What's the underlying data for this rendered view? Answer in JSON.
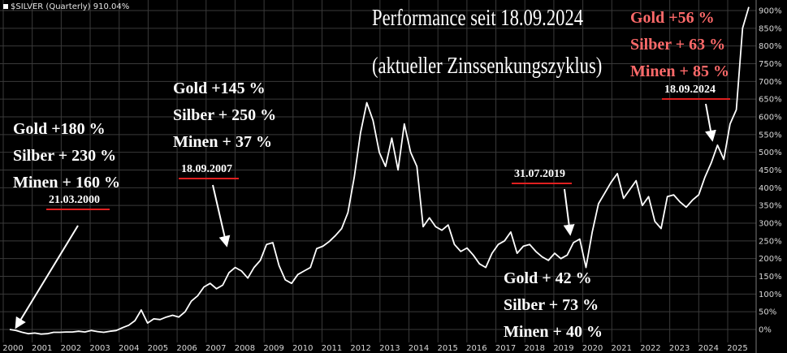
{
  "header": {
    "symbol_label": "$SILVER (Quarterly) 910.04%"
  },
  "title_lines": [
    "Performance seit 18.09.2024",
    "(aktueller Zinssenkungszyklus)"
  ],
  "annotations": [
    {
      "id": "2000",
      "lines": [
        "Gold +180 %",
        "Silber + 230 %",
        "Minen + 160 %"
      ],
      "date": "21.03.2000"
    },
    {
      "id": "2007",
      "lines": [
        "Gold +145 %",
        "Silber + 250 %",
        "Minen + 37 %"
      ],
      "date": "18.09.2007"
    },
    {
      "id": "2019",
      "lines": [
        "Gold + 42 %",
        "Silber + 73 %",
        "Minen + 40 %"
      ],
      "date": "31.07.2019"
    },
    {
      "id": "2024",
      "lines": [
        "Gold +56 %",
        "Silber + 63 %",
        "Minen + 85 %"
      ],
      "date": "18.09.2024"
    }
  ],
  "colors": {
    "background": "#000000",
    "grid": "#3a3a3a",
    "line": "#ffffff",
    "date_underline": "#e02020",
    "highlight_text": "#ff6a6a"
  },
  "chart_data": {
    "type": "line",
    "series": [
      {
        "values": [
          0,
          -3,
          -8,
          -12,
          -10,
          -13,
          -12,
          -8,
          -8,
          -7,
          -7,
          -5,
          -7,
          -3,
          -6,
          -8,
          -5,
          -3,
          5,
          12,
          25,
          55,
          18,
          30,
          28,
          35,
          40,
          35,
          50,
          80,
          95,
          120,
          130,
          115,
          125,
          160,
          175,
          165,
          145,
          175,
          195,
          240,
          245,
          180,
          140,
          130,
          155,
          165,
          175,
          228,
          235,
          248,
          265,
          285,
          330,
          430,
          555,
          640,
          590,
          500,
          460,
          540,
          450,
          580,
          500,
          460,
          290,
          315,
          290,
          280,
          295,
          240,
          220,
          230,
          210,
          185,
          175,
          215,
          240,
          250,
          275,
          215,
          235,
          240,
          220,
          205,
          195,
          215,
          200,
          210,
          245,
          255,
          175,
          275,
          355,
          385,
          415,
          440,
          370,
          395,
          420,
          350,
          375,
          305,
          285,
          375,
          380,
          360,
          345,
          365,
          380,
          430,
          470,
          520,
          480,
          580,
          620,
          850,
          910
        ]
      }
    ],
    "x_start_year": 2000,
    "x_end_year": 2026,
    "x_ticks": [
      "2000",
      "2001",
      "2002",
      "2003",
      "2004",
      "2005",
      "2006",
      "2007",
      "2008",
      "2009",
      "2010",
      "2011",
      "2012",
      "2013",
      "2014",
      "2015",
      "2016",
      "2017",
      "2018",
      "2019",
      "2020",
      "2021",
      "2022",
      "2023",
      "2024",
      "2025"
    ],
    "y_ticks": [
      "0%",
      "50%",
      "100%",
      "150%",
      "200%",
      "250%",
      "300%",
      "350%",
      "400%",
      "450%",
      "500%",
      "550%",
      "600%",
      "650%",
      "700%",
      "750%",
      "800%",
      "850%",
      "900%"
    ],
    "ylim": [
      -30,
      920
    ],
    "grid": true,
    "y_axis_position": "right"
  }
}
